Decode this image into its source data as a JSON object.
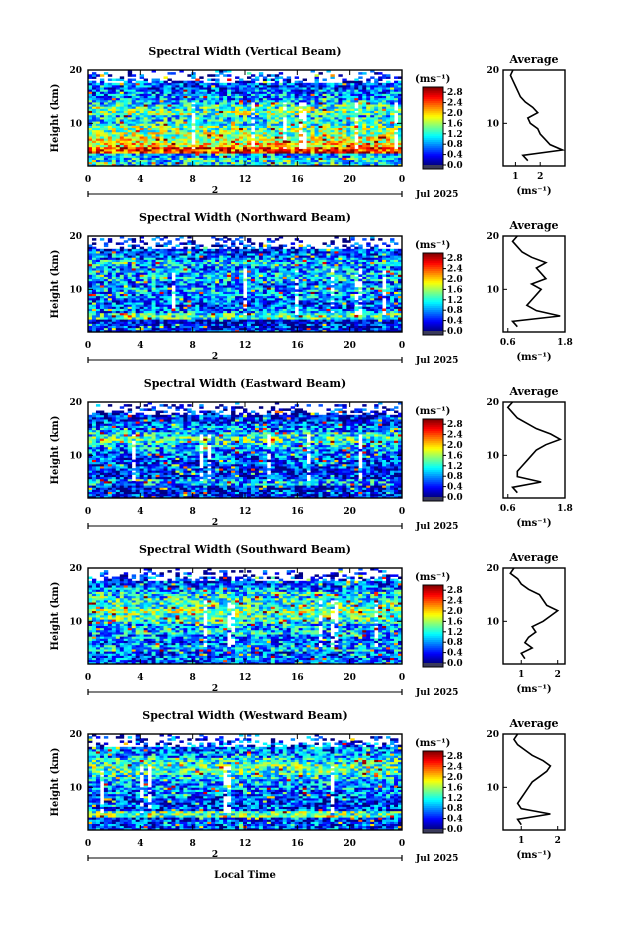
{
  "figure": {
    "bottom_label": "Local Time",
    "date_label": "Jul 2025",
    "day_marker": "2"
  },
  "chart_data": [
    {
      "type": "heatmap",
      "title": "Spectral Width (Vertical Beam)",
      "xlabel": "Local Time",
      "ylabel": "Height (km)",
      "xlim": [
        0,
        24
      ],
      "ylim": [
        2,
        20
      ],
      "x_ticks": [
        "0",
        "4",
        "8",
        "12",
        "16",
        "20",
        "0"
      ],
      "y_ticks": [
        "10",
        "20"
      ],
      "colorbar": {
        "unit": "(ms⁻¹)",
        "ticks": [
          "2.8",
          "2.4",
          "2.0",
          "1.6",
          "1.2",
          "0.8",
          "0.4",
          "0.0"
        ],
        "range": [
          0,
          3.0
        ]
      },
      "average_profile": {
        "title": "Average",
        "xlabel": "(ms⁻¹)",
        "x_ticks": [
          "1",
          "2"
        ],
        "xlim": [
          0.5,
          3.0
        ],
        "height_km": [
          3,
          4,
          5,
          6,
          7,
          8,
          9,
          10,
          11,
          12,
          13,
          14,
          15,
          16,
          17,
          18,
          19,
          20
        ],
        "width_ms": [
          1.5,
          1.3,
          2.9,
          2.4,
          2.2,
          2.0,
          1.9,
          1.6,
          1.5,
          1.9,
          1.7,
          1.4,
          1.2,
          1.1,
          1.0,
          0.9,
          0.8,
          0.9
        ]
      }
    },
    {
      "type": "heatmap",
      "title": "Spectral Width (Northward Beam)",
      "xlabel": "Local Time",
      "ylabel": "Height (km)",
      "xlim": [
        0,
        24
      ],
      "ylim": [
        2,
        20
      ],
      "x_ticks": [
        "0",
        "4",
        "8",
        "12",
        "16",
        "20",
        "0"
      ],
      "y_ticks": [
        "10",
        "20"
      ],
      "colorbar": {
        "unit": "(ms⁻¹)",
        "ticks": [
          "2.8",
          "2.4",
          "2.0",
          "1.6",
          "1.2",
          "0.8",
          "0.4",
          "0.0"
        ],
        "range": [
          0,
          3.0
        ]
      },
      "average_profile": {
        "title": "Average",
        "xlabel": "(ms⁻¹)",
        "x_ticks": [
          "0.6",
          "1.8"
        ],
        "xlim": [
          0.5,
          1.8
        ],
        "height_km": [
          3,
          4,
          5,
          6,
          7,
          8,
          9,
          10,
          11,
          12,
          13,
          14,
          15,
          16,
          17,
          18,
          19,
          20
        ],
        "width_ms": [
          0.8,
          0.7,
          1.7,
          1.2,
          1.0,
          1.1,
          1.2,
          1.3,
          1.1,
          1.4,
          1.3,
          1.2,
          1.4,
          1.1,
          0.9,
          0.8,
          0.7,
          0.8
        ]
      }
    },
    {
      "type": "heatmap",
      "title": "Spectral Width (Eastward Beam)",
      "xlabel": "Local Time",
      "ylabel": "Height (km)",
      "xlim": [
        0,
        24
      ],
      "ylim": [
        2,
        20
      ],
      "x_ticks": [
        "0",
        "4",
        "8",
        "12",
        "16",
        "20",
        "0"
      ],
      "y_ticks": [
        "10",
        "20"
      ],
      "colorbar": {
        "unit": "(ms⁻¹)",
        "ticks": [
          "2.8",
          "2.4",
          "2.0",
          "1.6",
          "1.2",
          "0.8",
          "0.4",
          "0.0"
        ],
        "range": [
          0,
          3.0
        ]
      },
      "average_profile": {
        "title": "Average",
        "xlabel": "(ms⁻¹)",
        "x_ticks": [
          "0.6",
          "1.8"
        ],
        "xlim": [
          0.5,
          1.8
        ],
        "height_km": [
          3,
          4,
          5,
          6,
          7,
          8,
          9,
          10,
          11,
          12,
          13,
          14,
          15,
          16,
          17,
          18,
          19,
          20
        ],
        "width_ms": [
          0.8,
          0.7,
          1.3,
          0.8,
          0.8,
          0.9,
          1.0,
          1.1,
          1.2,
          1.4,
          1.7,
          1.5,
          1.2,
          1.0,
          0.8,
          0.7,
          0.6,
          0.7
        ]
      }
    },
    {
      "type": "heatmap",
      "title": "Spectral Width (Southward Beam)",
      "xlabel": "Local Time",
      "ylabel": "Height (km)",
      "xlim": [
        0,
        24
      ],
      "ylim": [
        2,
        20
      ],
      "x_ticks": [
        "0",
        "4",
        "8",
        "12",
        "16",
        "20",
        "0"
      ],
      "y_ticks": [
        "10",
        "20"
      ],
      "colorbar": {
        "unit": "(ms⁻¹)",
        "ticks": [
          "2.8",
          "2.4",
          "2.0",
          "1.6",
          "1.2",
          "0.8",
          "0.4",
          "0.0"
        ],
        "range": [
          0,
          3.0
        ]
      },
      "average_profile": {
        "title": "Average",
        "xlabel": "(ms⁻¹)",
        "x_ticks": [
          "1",
          "2"
        ],
        "xlim": [
          0.5,
          2.2
        ],
        "height_km": [
          3,
          4,
          5,
          6,
          7,
          8,
          9,
          10,
          11,
          12,
          13,
          14,
          15,
          16,
          17,
          18,
          19,
          20
        ],
        "width_ms": [
          1.1,
          1.0,
          1.3,
          1.1,
          1.2,
          1.4,
          1.3,
          1.6,
          1.8,
          2.0,
          1.7,
          1.6,
          1.5,
          1.2,
          1.0,
          0.9,
          0.7,
          0.8
        ]
      }
    },
    {
      "type": "heatmap",
      "title": "Spectral Width (Westward Beam)",
      "xlabel": "Local Time",
      "ylabel": "Height (km)",
      "xlim": [
        0,
        24
      ],
      "ylim": [
        2,
        20
      ],
      "x_ticks": [
        "0",
        "4",
        "8",
        "12",
        "16",
        "20",
        "0"
      ],
      "y_ticks": [
        "10",
        "20"
      ],
      "colorbar": {
        "unit": "(ms⁻¹)",
        "ticks": [
          "2.8",
          "2.4",
          "2.0",
          "1.6",
          "1.2",
          "0.8",
          "0.4",
          "0.0"
        ],
        "range": [
          0,
          3.0
        ]
      },
      "average_profile": {
        "title": "Average",
        "xlabel": "(ms⁻¹)",
        "x_ticks": [
          "1",
          "2"
        ],
        "xlim": [
          0.5,
          2.2
        ],
        "height_km": [
          3,
          4,
          5,
          6,
          7,
          8,
          9,
          10,
          11,
          12,
          13,
          14,
          15,
          16,
          17,
          18,
          19,
          20
        ],
        "width_ms": [
          1.0,
          0.9,
          1.8,
          1.0,
          0.9,
          1.0,
          1.1,
          1.2,
          1.3,
          1.5,
          1.7,
          1.8,
          1.6,
          1.3,
          1.1,
          0.9,
          0.8,
          0.9
        ]
      }
    }
  ]
}
